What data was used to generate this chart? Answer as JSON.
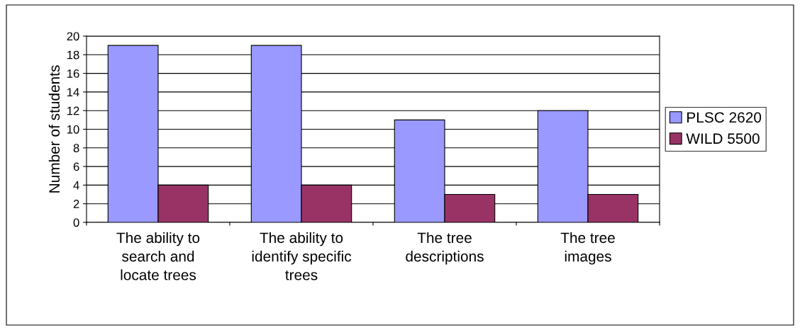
{
  "chart_data": {
    "type": "bar",
    "ylabel": "Number of students",
    "categories": [
      "The ability to\nsearch and\nlocate trees",
      "The ability to\nidentify specific\ntrees",
      "The tree\ndescriptions",
      "The tree\nimages"
    ],
    "series": [
      {
        "name": "PLSC 2620",
        "color": "#9999ff",
        "values": [
          19,
          19,
          11,
          12
        ]
      },
      {
        "name": "WILD 5500",
        "color": "#993366",
        "values": [
          4,
          4,
          3,
          3
        ]
      }
    ],
    "ylim": [
      0,
      20
    ],
    "yticks": [
      0,
      2,
      4,
      6,
      8,
      10,
      12,
      14,
      16,
      18,
      20
    ],
    "grid": "y",
    "legend": "right"
  }
}
